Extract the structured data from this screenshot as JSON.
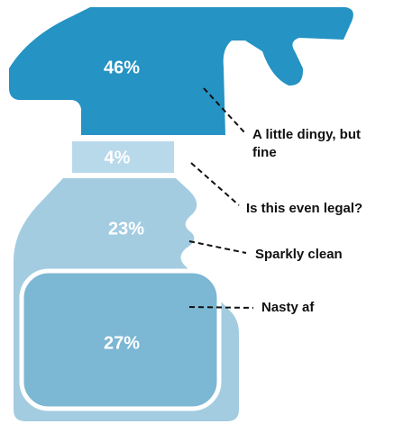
{
  "chart_data": {
    "type": "pictogram",
    "categories": [
      "A little dingy, but fine",
      "Is this even legal?",
      "Sparkly clean",
      "Nasty af"
    ],
    "values": [
      46,
      4,
      23,
      27
    ],
    "value_labels": [
      "46%",
      "4%",
      "23%",
      "27%"
    ],
    "colors": [
      "#2593c3",
      "#b8d9ea",
      "#a3cce1",
      "#7cb7d4"
    ]
  }
}
